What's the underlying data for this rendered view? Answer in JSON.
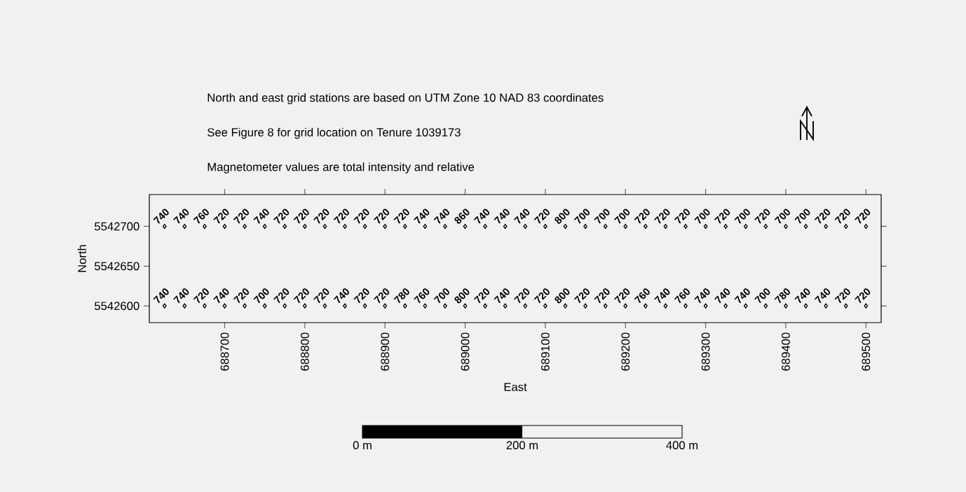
{
  "chart_data": {
    "type": "scatter",
    "xlabel": "East",
    "ylabel": "North",
    "annotations": [
      "North and east grid stations are based on UTM Zone 10 NAD 83 coordinates",
      "See Figure 8 for grid location on Tenure 1039173",
      "Magnetometer values are total intensity and relative",
      "0 m",
      "200 m",
      "400 m",
      {
        "text": "740",
        "x": 688625,
        "y": 5542700
      },
      {
        "text": "740",
        "x": 688650,
        "y": 5542700
      },
      {
        "text": "760",
        "x": 688675,
        "y": 5542700
      },
      {
        "text": "720",
        "x": 688700,
        "y": 5542700
      },
      {
        "text": "720",
        "x": 688725,
        "y": 5542700
      },
      {
        "text": "740",
        "x": 688750,
        "y": 5542700
      },
      {
        "text": "720",
        "x": 688775,
        "y": 5542700
      },
      {
        "text": "720",
        "x": 688800,
        "y": 5542700
      },
      {
        "text": "720",
        "x": 688825,
        "y": 5542700
      },
      {
        "text": "720",
        "x": 688850,
        "y": 5542700
      },
      {
        "text": "720",
        "x": 688875,
        "y": 5542700
      },
      {
        "text": "720",
        "x": 688900,
        "y": 5542700
      },
      {
        "text": "720",
        "x": 688925,
        "y": 5542700
      },
      {
        "text": "740",
        "x": 688950,
        "y": 5542700
      },
      {
        "text": "740",
        "x": 688975,
        "y": 5542700
      },
      {
        "text": "860",
        "x": 689000,
        "y": 5542700
      },
      {
        "text": "740",
        "x": 689025,
        "y": 5542700
      },
      {
        "text": "740",
        "x": 689050,
        "y": 5542700
      },
      {
        "text": "740",
        "x": 689075,
        "y": 5542700
      },
      {
        "text": "720",
        "x": 689100,
        "y": 5542700
      },
      {
        "text": "800",
        "x": 689125,
        "y": 5542700
      },
      {
        "text": "700",
        "x": 689150,
        "y": 5542700
      },
      {
        "text": "700",
        "x": 689175,
        "y": 5542700
      },
      {
        "text": "700",
        "x": 689200,
        "y": 5542700
      },
      {
        "text": "720",
        "x": 689225,
        "y": 5542700
      },
      {
        "text": "720",
        "x": 689250,
        "y": 5542700
      },
      {
        "text": "720",
        "x": 689275,
        "y": 5542700
      },
      {
        "text": "700",
        "x": 689300,
        "y": 5542700
      },
      {
        "text": "720",
        "x": 689325,
        "y": 5542700
      },
      {
        "text": "700",
        "x": 689350,
        "y": 5542700
      },
      {
        "text": "720",
        "x": 689375,
        "y": 5542700
      },
      {
        "text": "700",
        "x": 689400,
        "y": 5542700
      },
      {
        "text": "700",
        "x": 689425,
        "y": 5542700
      },
      {
        "text": "720",
        "x": 689450,
        "y": 5542700
      },
      {
        "text": "720",
        "x": 689475,
        "y": 5542700
      },
      {
        "text": "720",
        "x": 689500,
        "y": 5542700
      },
      {
        "text": "740",
        "x": 688625,
        "y": 5542600
      },
      {
        "text": "740",
        "x": 688650,
        "y": 5542600
      },
      {
        "text": "720",
        "x": 688675,
        "y": 5542600
      },
      {
        "text": "740",
        "x": 688700,
        "y": 5542600
      },
      {
        "text": "720",
        "x": 688725,
        "y": 5542600
      },
      {
        "text": "700",
        "x": 688750,
        "y": 5542600
      },
      {
        "text": "720",
        "x": 688775,
        "y": 5542600
      },
      {
        "text": "720",
        "x": 688800,
        "y": 5542600
      },
      {
        "text": "720",
        "x": 688825,
        "y": 5542600
      },
      {
        "text": "740",
        "x": 688850,
        "y": 5542600
      },
      {
        "text": "720",
        "x": 688875,
        "y": 5542600
      },
      {
        "text": "720",
        "x": 688900,
        "y": 5542600
      },
      {
        "text": "780",
        "x": 688925,
        "y": 5542600
      },
      {
        "text": "760",
        "x": 688950,
        "y": 5542600
      },
      {
        "text": "700",
        "x": 688975,
        "y": 5542600
      },
      {
        "text": "800",
        "x": 689000,
        "y": 5542600
      },
      {
        "text": "720",
        "x": 689025,
        "y": 5542600
      },
      {
        "text": "740",
        "x": 689050,
        "y": 5542600
      },
      {
        "text": "720",
        "x": 689075,
        "y": 5542600
      },
      {
        "text": "720",
        "x": 689100,
        "y": 5542600
      },
      {
        "text": "800",
        "x": 689125,
        "y": 5542600
      },
      {
        "text": "720",
        "x": 689150,
        "y": 5542600
      },
      {
        "text": "720",
        "x": 689175,
        "y": 5542600
      },
      {
        "text": "720",
        "x": 689200,
        "y": 5542600
      },
      {
        "text": "760",
        "x": 689225,
        "y": 5542600
      },
      {
        "text": "740",
        "x": 689250,
        "y": 5542600
      },
      {
        "text": "760",
        "x": 689275,
        "y": 5542600
      },
      {
        "text": "740",
        "x": 689300,
        "y": 5542600
      },
      {
        "text": "740",
        "x": 689325,
        "y": 5542600
      },
      {
        "text": "740",
        "x": 689350,
        "y": 5542600
      },
      {
        "text": "700",
        "x": 689375,
        "y": 5542600
      },
      {
        "text": "780",
        "x": 689400,
        "y": 5542600
      },
      {
        "text": "740",
        "x": 689425,
        "y": 5542600
      },
      {
        "text": "740",
        "x": 689450,
        "y": 5542600
      },
      {
        "text": "720",
        "x": 689475,
        "y": 5542600
      },
      {
        "text": "720",
        "x": 689500,
        "y": 5542600
      }
    ],
    "x": [
      688625,
      688650,
      688675,
      688700,
      688725,
      688750,
      688775,
      688800,
      688825,
      688850,
      688875,
      688900,
      688925,
      688950,
      688975,
      689000,
      689025,
      689050,
      689075,
      689100,
      689125,
      689150,
      689175,
      689200,
      689225,
      689250,
      689275,
      689300,
      689325,
      689350,
      689375,
      689400,
      689425,
      689450,
      689475,
      689500
    ],
    "series": [
      {
        "color": "#000000",
        "values": [
          5542700,
          5542700,
          5542700,
          5542700,
          5542700,
          5542700,
          5542700,
          5542700,
          5542700,
          5542700,
          5542700,
          5542700,
          5542700,
          5542700,
          5542700,
          5542700,
          5542700,
          5542700,
          5542700,
          5542700,
          5542700,
          5542700,
          5542700,
          5542700,
          5542700,
          5542700,
          5542700,
          5542700,
          5542700,
          5542700,
          5542700,
          5542700,
          5542700,
          5542700,
          5542700,
          5542700
        ]
      },
      {
        "color": "#000000",
        "values": [
          5542600,
          5542600,
          5542600,
          5542600,
          5542600,
          5542600,
          5542600,
          5542600,
          5542600,
          5542600,
          5542600,
          5542600,
          5542600,
          5542600,
          5542600,
          5542600,
          5542600,
          5542600,
          5542600,
          5542600,
          5542600,
          5542600,
          5542600,
          5542600,
          5542600,
          5542600,
          5542600,
          5542600,
          5542600,
          5542600,
          5542600,
          5542600,
          5542600,
          5542600,
          5542600,
          5542600
        ]
      }
    ],
    "marker": "diamond",
    "xlim": [
      688606,
      689519
    ],
    "ylim": [
      5542579,
      5542740
    ],
    "xticks": [
      688700,
      688800,
      688900,
      689000,
      689100,
      689200,
      689300,
      689400,
      689500
    ],
    "yticks": [
      5542600,
      5542650,
      5542700
    ]
  }
}
